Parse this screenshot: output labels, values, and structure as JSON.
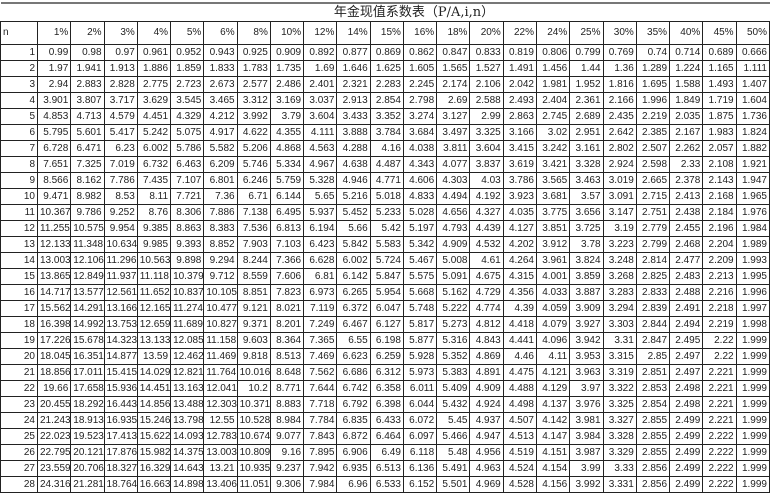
{
  "title": "年金现值系数表（P/A,i,n）",
  "n_label": "n",
  "columns": [
    "1%",
    "2%",
    "3%",
    "4%",
    "5%",
    "6%",
    "8%",
    "10%",
    "12%",
    "14%",
    "15%",
    "16%",
    "18%",
    "20%",
    "22%",
    "24%",
    "25%",
    "30%",
    "35%",
    "40%",
    "45%",
    "50%"
  ],
  "rows": [
    {
      "n": "1",
      "values": [
        "0.99",
        "0.98",
        "0.97",
        "0.961",
        "0.952",
        "0.943",
        "0.925",
        "0.909",
        "0.892",
        "0.877",
        "0.869",
        "0.862",
        "0.847",
        "0.833",
        "0.819",
        "0.806",
        "0.799",
        "0.769",
        "0.74",
        "0.714",
        "0.689",
        "0.666"
      ]
    },
    {
      "n": "2",
      "values": [
        "1.97",
        "1.941",
        "1.913",
        "1.886",
        "1.859",
        "1.833",
        "1.783",
        "1.735",
        "1.69",
        "1.646",
        "1.625",
        "1.605",
        "1.565",
        "1.527",
        "1.491",
        "1.456",
        "1.44",
        "1.36",
        "1.289",
        "1.224",
        "1.165",
        "1.111"
      ]
    },
    {
      "n": "3",
      "values": [
        "2.94",
        "2.883",
        "2.828",
        "2.775",
        "2.723",
        "2.673",
        "2.577",
        "2.486",
        "2.401",
        "2.321",
        "2.283",
        "2.245",
        "2.174",
        "2.106",
        "2.042",
        "1.981",
        "1.952",
        "1.816",
        "1.695",
        "1.588",
        "1.493",
        "1.407"
      ]
    },
    {
      "n": "4",
      "values": [
        "3.901",
        "3.807",
        "3.717",
        "3.629",
        "3.545",
        "3.465",
        "3.312",
        "3.169",
        "3.037",
        "2.913",
        "2.854",
        "2.798",
        "2.69",
        "2.588",
        "2.493",
        "2.404",
        "2.361",
        "2.166",
        "1.996",
        "1.849",
        "1.719",
        "1.604"
      ]
    },
    {
      "n": "5",
      "values": [
        "4.853",
        "4.713",
        "4.579",
        "4.451",
        "4.329",
        "4.212",
        "3.992",
        "3.79",
        "3.604",
        "3.433",
        "3.352",
        "3.274",
        "3.127",
        "2.99",
        "2.863",
        "2.745",
        "2.689",
        "2.435",
        "2.219",
        "2.035",
        "1.875",
        "1.736"
      ]
    },
    {
      "n": "6",
      "values": [
        "5.795",
        "5.601",
        "5.417",
        "5.242",
        "5.075",
        "4.917",
        "4.622",
        "4.355",
        "4.111",
        "3.888",
        "3.784",
        "3.684",
        "3.497",
        "3.325",
        "3.166",
        "3.02",
        "2.951",
        "2.642",
        "2.385",
        "2.167",
        "1.983",
        "1.824"
      ]
    },
    {
      "n": "7",
      "values": [
        "6.728",
        "6.471",
        "6.23",
        "6.002",
        "5.786",
        "5.582",
        "5.206",
        "4.868",
        "4.563",
        "4.288",
        "4.16",
        "4.038",
        "3.811",
        "3.604",
        "3.415",
        "3.242",
        "3.161",
        "2.802",
        "2.507",
        "2.262",
        "2.057",
        "1.882"
      ]
    },
    {
      "n": "8",
      "values": [
        "7.651",
        "7.325",
        "7.019",
        "6.732",
        "6.463",
        "6.209",
        "5.746",
        "5.334",
        "4.967",
        "4.638",
        "4.487",
        "4.343",
        "4.077",
        "3.837",
        "3.619",
        "3.421",
        "3.328",
        "2.924",
        "2.598",
        "2.33",
        "2.108",
        "1.921"
      ]
    },
    {
      "n": "9",
      "values": [
        "8.566",
        "8.162",
        "7.786",
        "7.435",
        "7.107",
        "6.801",
        "6.246",
        "5.759",
        "5.328",
        "4.946",
        "4.771",
        "4.606",
        "4.303",
        "4.03",
        "3.786",
        "3.565",
        "3.463",
        "3.019",
        "2.665",
        "2.378",
        "2.143",
        "1.947"
      ]
    },
    {
      "n": "10",
      "values": [
        "9.471",
        "8.982",
        "8.53",
        "8.11",
        "7.721",
        "7.36",
        "6.71",
        "6.144",
        "5.65",
        "5.216",
        "5.018",
        "4.833",
        "4.494",
        "4.192",
        "3.923",
        "3.681",
        "3.57",
        "3.091",
        "2.715",
        "2.413",
        "2.168",
        "1.965"
      ]
    },
    {
      "n": "11",
      "values": [
        "10.367",
        "9.786",
        "9.252",
        "8.76",
        "8.306",
        "7.886",
        "7.138",
        "6.495",
        "5.937",
        "5.452",
        "5.233",
        "5.028",
        "4.656",
        "4.327",
        "4.035",
        "3.775",
        "3.656",
        "3.147",
        "2.751",
        "2.438",
        "2.184",
        "1.976"
      ]
    },
    {
      "n": "12",
      "values": [
        "11.255",
        "10.575",
        "9.954",
        "9.385",
        "8.863",
        "8.383",
        "7.536",
        "6.813",
        "6.194",
        "5.66",
        "5.42",
        "5.197",
        "4.793",
        "4.439",
        "4.127",
        "3.851",
        "3.725",
        "3.19",
        "2.779",
        "2.455",
        "2.196",
        "1.984"
      ]
    },
    {
      "n": "13",
      "values": [
        "12.133",
        "11.348",
        "10.634",
        "9.985",
        "9.393",
        "8.852",
        "7.903",
        "7.103",
        "6.423",
        "5.842",
        "5.583",
        "5.342",
        "4.909",
        "4.532",
        "4.202",
        "3.912",
        "3.78",
        "3.223",
        "2.799",
        "2.468",
        "2.204",
        "1.989"
      ]
    },
    {
      "n": "14",
      "values": [
        "13.003",
        "12.106",
        "11.296",
        "10.563",
        "9.898",
        "9.294",
        "8.244",
        "7.366",
        "6.628",
        "6.002",
        "5.724",
        "5.467",
        "5.008",
        "4.61",
        "4.264",
        "3.961",
        "3.824",
        "3.248",
        "2.814",
        "2.477",
        "2.209",
        "1.993"
      ]
    },
    {
      "n": "15",
      "values": [
        "13.865",
        "12.849",
        "11.937",
        "11.118",
        "10.379",
        "9.712",
        "8.559",
        "7.606",
        "6.81",
        "6.142",
        "5.847",
        "5.575",
        "5.091",
        "4.675",
        "4.315",
        "4.001",
        "3.859",
        "3.268",
        "2.825",
        "2.483",
        "2.213",
        "1.995"
      ]
    },
    {
      "n": "16",
      "values": [
        "14.717",
        "13.577",
        "12.561",
        "11.652",
        "10.837",
        "10.105",
        "8.851",
        "7.823",
        "6.973",
        "6.265",
        "5.954",
        "5.668",
        "5.162",
        "4.729",
        "4.356",
        "4.033",
        "3.887",
        "3.283",
        "2.833",
        "2.488",
        "2.216",
        "1.996"
      ]
    },
    {
      "n": "17",
      "values": [
        "15.562",
        "14.291",
        "13.166",
        "12.165",
        "11.274",
        "10.477",
        "9.121",
        "8.021",
        "7.119",
        "6.372",
        "6.047",
        "5.748",
        "5.222",
        "4.774",
        "4.39",
        "4.059",
        "3.909",
        "3.294",
        "2.839",
        "2.491",
        "2.218",
        "1.997"
      ]
    },
    {
      "n": "18",
      "values": [
        "16.398",
        "14.992",
        "13.753",
        "12.659",
        "11.689",
        "10.827",
        "9.371",
        "8.201",
        "7.249",
        "6.467",
        "6.127",
        "5.817",
        "5.273",
        "4.812",
        "4.418",
        "4.079",
        "3.927",
        "3.303",
        "2.844",
        "2.494",
        "2.219",
        "1.998"
      ]
    },
    {
      "n": "19",
      "values": [
        "17.226",
        "15.678",
        "14.323",
        "13.133",
        "12.085",
        "11.158",
        "9.603",
        "8.364",
        "7.365",
        "6.55",
        "6.198",
        "5.877",
        "5.316",
        "4.843",
        "4.441",
        "4.096",
        "3.942",
        "3.31",
        "2.847",
        "2.495",
        "2.22",
        "1.999"
      ]
    },
    {
      "n": "20",
      "values": [
        "18.045",
        "16.351",
        "14.877",
        "13.59",
        "12.462",
        "11.469",
        "9.818",
        "8.513",
        "7.469",
        "6.623",
        "6.259",
        "5.928",
        "5.352",
        "4.869",
        "4.46",
        "4.11",
        "3.953",
        "3.315",
        "2.85",
        "2.497",
        "2.22",
        "1.999"
      ]
    },
    {
      "n": "21",
      "values": [
        "18.856",
        "17.011",
        "15.415",
        "14.029",
        "12.821",
        "11.764",
        "10.016",
        "8.648",
        "7.562",
        "6.686",
        "6.312",
        "5.973",
        "5.383",
        "4.891",
        "4.475",
        "4.121",
        "3.963",
        "3.319",
        "2.851",
        "2.497",
        "2.221",
        "1.999"
      ]
    },
    {
      "n": "22",
      "values": [
        "19.66",
        "17.658",
        "15.936",
        "14.451",
        "13.163",
        "12.041",
        "10.2",
        "8.771",
        "7.644",
        "6.742",
        "6.358",
        "6.011",
        "5.409",
        "4.909",
        "4.488",
        "4.129",
        "3.97",
        "3.322",
        "2.853",
        "2.498",
        "2.221",
        "1.999"
      ]
    },
    {
      "n": "23",
      "values": [
        "20.455",
        "18.292",
        "16.443",
        "14.856",
        "13.488",
        "12.303",
        "10.371",
        "8.883",
        "7.718",
        "6.792",
        "6.398",
        "6.044",
        "5.432",
        "4.924",
        "4.498",
        "4.137",
        "3.976",
        "3.325",
        "2.854",
        "2.498",
        "2.221",
        "1.999"
      ]
    },
    {
      "n": "24",
      "values": [
        "21.243",
        "18.913",
        "16.935",
        "15.246",
        "13.798",
        "12.55",
        "10.528",
        "8.984",
        "7.784",
        "6.835",
        "6.433",
        "6.072",
        "5.45",
        "4.937",
        "4.507",
        "4.142",
        "3.981",
        "3.327",
        "2.855",
        "2.499",
        "2.221",
        "1.999"
      ]
    },
    {
      "n": "25",
      "values": [
        "22.023",
        "19.523",
        "17.413",
        "15.622",
        "14.093",
        "12.783",
        "10.674",
        "9.077",
        "7.843",
        "6.872",
        "6.464",
        "6.097",
        "5.466",
        "4.947",
        "4.513",
        "4.147",
        "3.984",
        "3.328",
        "2.855",
        "2.499",
        "2.222",
        "1.999"
      ]
    },
    {
      "n": "26",
      "values": [
        "22.795",
        "20.121",
        "17.876",
        "15.982",
        "14.375",
        "13.003",
        "10.809",
        "9.16",
        "7.895",
        "6.906",
        "6.49",
        "6.118",
        "5.48",
        "4.956",
        "4.519",
        "4.151",
        "3.987",
        "3.329",
        "2.855",
        "2.499",
        "2.222",
        "1.999"
      ]
    },
    {
      "n": "27",
      "values": [
        "23.559",
        "20.706",
        "18.327",
        "16.329",
        "14.643",
        "13.21",
        "10.935",
        "9.237",
        "7.942",
        "6.935",
        "6.513",
        "6.136",
        "5.491",
        "4.963",
        "4.524",
        "4.154",
        "3.99",
        "3.33",
        "2.856",
        "2.499",
        "2.222",
        "1.999"
      ]
    },
    {
      "n": "28",
      "values": [
        "24.316",
        "21.281",
        "18.764",
        "16.663",
        "14.898",
        "13.406",
        "11.051",
        "9.306",
        "7.984",
        "6.96",
        "6.533",
        "6.152",
        "5.501",
        "4.969",
        "4.528",
        "4.156",
        "3.992",
        "3.331",
        "2.856",
        "2.499",
        "2.222",
        "1.999"
      ]
    }
  ]
}
